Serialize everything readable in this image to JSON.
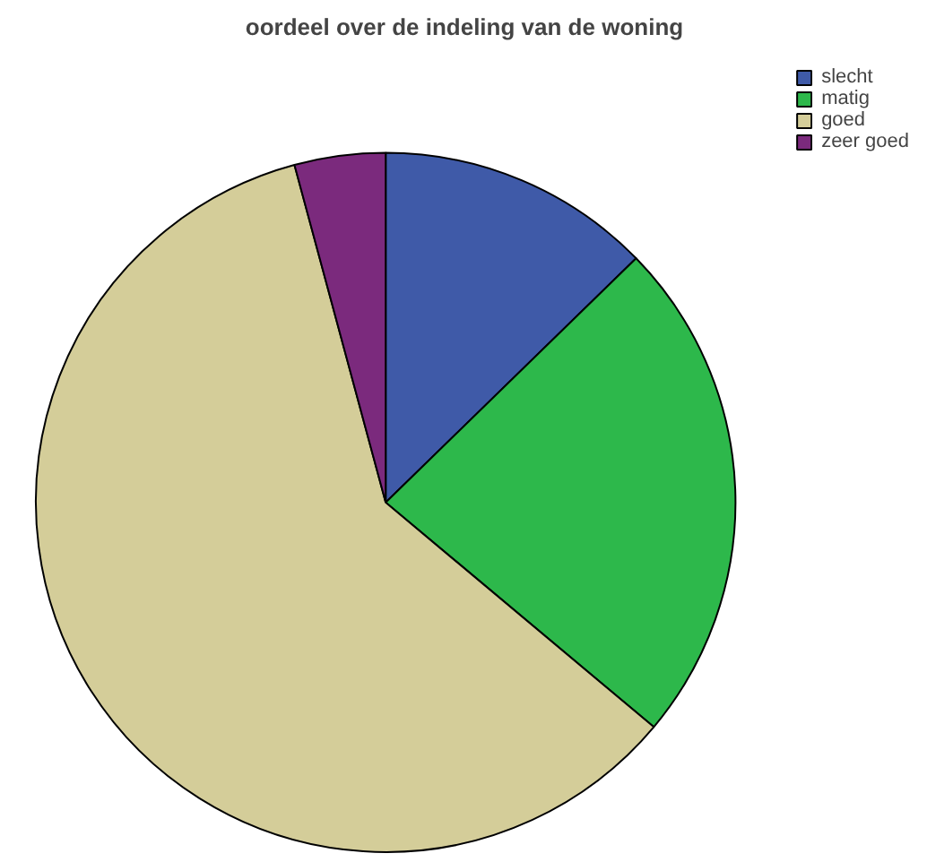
{
  "chart_data": {
    "type": "pie",
    "title": "oordeel over de indeling van de woning",
    "categories": [
      "slecht",
      "matig",
      "goed",
      "zeer goed"
    ],
    "values": [
      12.7,
      23.4,
      59.7,
      4.2
    ],
    "colors": [
      "#3f5aa8",
      "#2db84b",
      "#d4cd99",
      "#7b2a7d"
    ],
    "legend": "top right"
  }
}
